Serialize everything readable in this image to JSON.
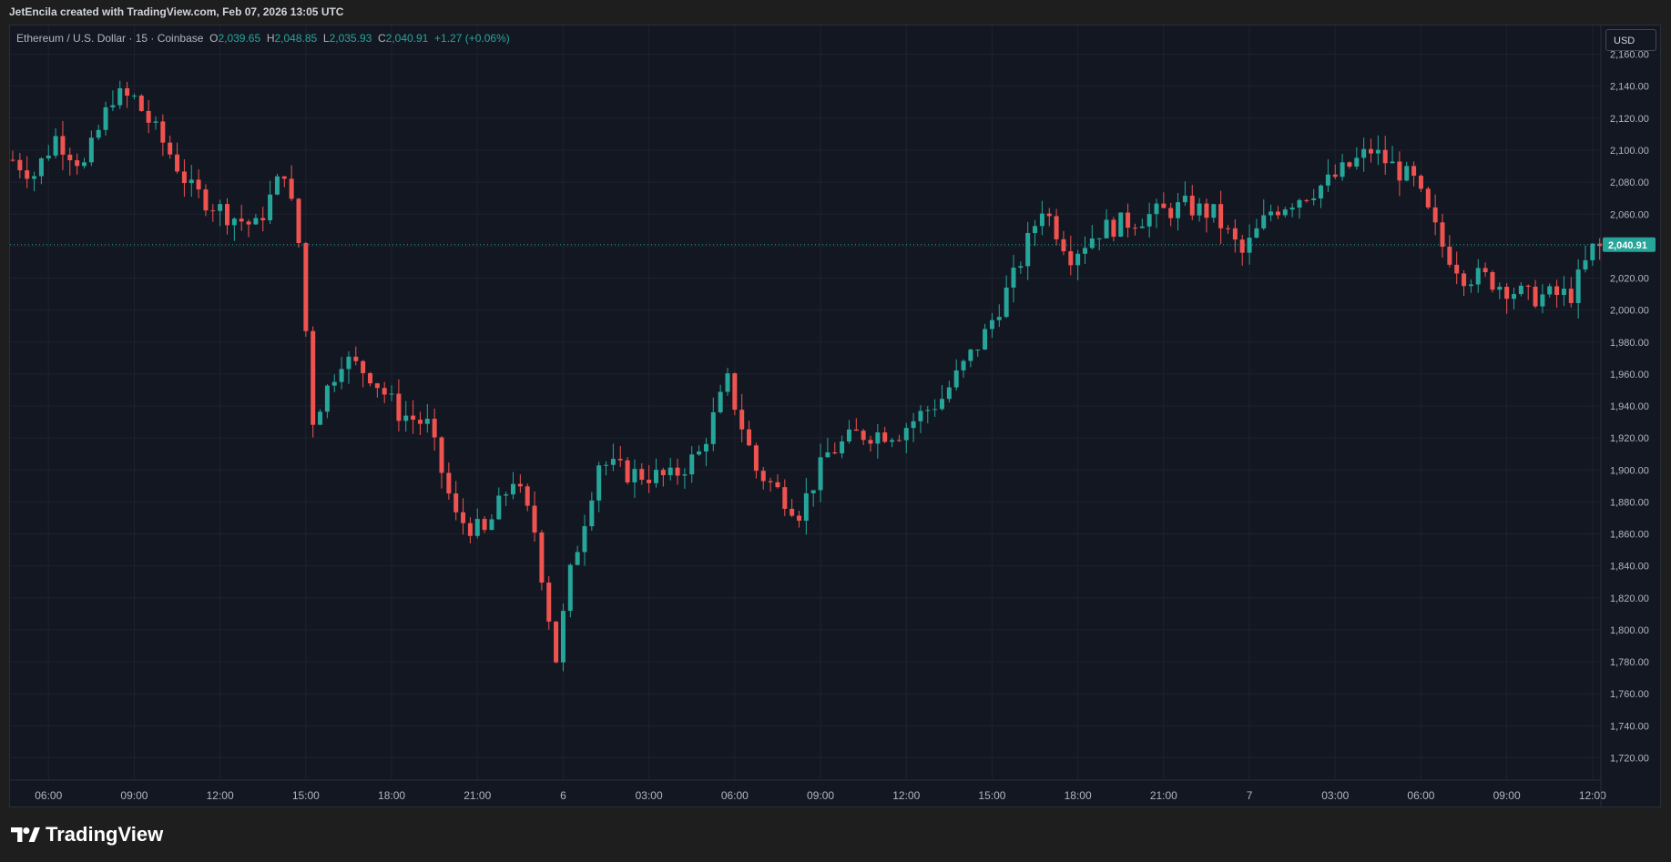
{
  "topbar": {
    "credit": "JetEncila created with TradingView.com, Feb 07, 2026 13:05 UTC"
  },
  "legend": {
    "symbol": "Ethereum / U.S. Dollar · 15 · Coinbase",
    "open_label": "O",
    "open": "2,039.65",
    "high_label": "H",
    "high": "2,048.85",
    "low_label": "L",
    "low": "2,035.93",
    "close_label": "C",
    "close": "2,040.91",
    "change": "+1.27 (+0.06%)"
  },
  "currency": "USD",
  "footer": {
    "logo_text": "TradingView",
    "logo_icon": "tradingview-logo-icon"
  },
  "colors": {
    "up": "#26a69a",
    "down": "#ef5350",
    "background": "#131722",
    "grid": "#1e2230",
    "text": "#d1d4dc"
  },
  "chart_data": {
    "type": "candlestick",
    "interval": "15",
    "ylim": [
      1706,
      2178
    ],
    "y_ticks": [
      1720,
      1740,
      1760,
      1780,
      1800,
      1820,
      1840,
      1860,
      1880,
      1900,
      1920,
      1940,
      1960,
      1980,
      2000,
      2020,
      2040,
      2060,
      2080,
      2100,
      2120,
      2140,
      2160
    ],
    "y_tick_labels": [
      "1,720.00",
      "1,740.00",
      "1,760.00",
      "1,780.00",
      "1,800.00",
      "1,820.00",
      "1,840.00",
      "1,860.00",
      "1,880.00",
      "1,900.00",
      "1,920.00",
      "1,940.00",
      "1,960.00",
      "1,980.00",
      "2,000.00",
      "2,020.00",
      "2,040.00",
      "2,060.00",
      "2,080.00",
      "2,100.00",
      "2,120.00",
      "2,140.00",
      "2,160.00"
    ],
    "x_ticks": [
      {
        "label": "06:00",
        "index": 5
      },
      {
        "label": "09:00",
        "index": 17
      },
      {
        "label": "12:00",
        "index": 29
      },
      {
        "label": "15:00",
        "index": 41
      },
      {
        "label": "18:00",
        "index": 53
      },
      {
        "label": "21:00",
        "index": 65
      },
      {
        "label": "6",
        "index": 77
      },
      {
        "label": "03:00",
        "index": 89
      },
      {
        "label": "06:00",
        "index": 101
      },
      {
        "label": "09:00",
        "index": 113
      },
      {
        "label": "12:00",
        "index": 125
      },
      {
        "label": "15:00",
        "index": 137
      },
      {
        "label": "18:00",
        "index": 149
      },
      {
        "label": "21:00",
        "index": 161
      },
      {
        "label": "7",
        "index": 173
      },
      {
        "label": "03:00",
        "index": 185
      },
      {
        "label": "06:00",
        "index": 197
      },
      {
        "label": "09:00",
        "index": 209
      },
      {
        "label": "12:00",
        "index": 221
      }
    ],
    "last_price": 2040.91,
    "last_price_label": "2,040.91",
    "anchors": [
      [
        0,
        2094
      ],
      [
        3,
        2085
      ],
      [
        6,
        2108
      ],
      [
        10,
        2090
      ],
      [
        14,
        2134
      ],
      [
        17,
        2132
      ],
      [
        22,
        2098
      ],
      [
        25,
        2075
      ],
      [
        30,
        2060
      ],
      [
        34,
        2052
      ],
      [
        38,
        2088
      ],
      [
        40,
        2042
      ],
      [
        42,
        1932
      ],
      [
        46,
        1970
      ],
      [
        50,
        1960
      ],
      [
        54,
        1936
      ],
      [
        58,
        1928
      ],
      [
        62,
        1870
      ],
      [
        66,
        1860
      ],
      [
        70,
        1895
      ],
      [
        73,
        1862
      ],
      [
        76,
        1782
      ],
      [
        78,
        1835
      ],
      [
        82,
        1905
      ],
      [
        86,
        1898
      ],
      [
        92,
        1895
      ],
      [
        96,
        1910
      ],
      [
        100,
        1955
      ],
      [
        104,
        1900
      ],
      [
        110,
        1874
      ],
      [
        114,
        1910
      ],
      [
        118,
        1922
      ],
      [
        124,
        1924
      ],
      [
        130,
        1945
      ],
      [
        136,
        1985
      ],
      [
        140,
        2020
      ],
      [
        144,
        2065
      ],
      [
        148,
        2035
      ],
      [
        152,
        2050
      ],
      [
        158,
        2058
      ],
      [
        164,
        2065
      ],
      [
        168,
        2060
      ],
      [
        172,
        2035
      ],
      [
        176,
        2062
      ],
      [
        184,
        2080
      ],
      [
        190,
        2100
      ],
      [
        196,
        2080
      ],
      [
        200,
        2040
      ],
      [
        203,
        2022
      ],
      [
        206,
        2020
      ],
      [
        212,
        2008
      ],
      [
        218,
        2010
      ],
      [
        221,
        2038
      ],
      [
        224,
        2040.91
      ]
    ]
  }
}
